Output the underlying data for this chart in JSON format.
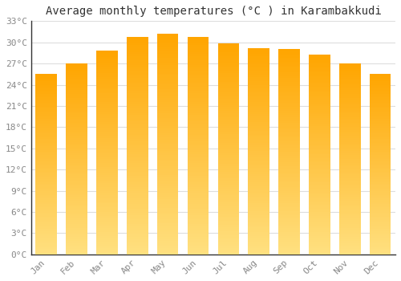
{
  "title": "Average monthly temperatures (°C ) in Karambakkudi",
  "months": [
    "Jan",
    "Feb",
    "Mar",
    "Apr",
    "May",
    "Jun",
    "Jul",
    "Aug",
    "Sep",
    "Oct",
    "Nov",
    "Dec"
  ],
  "values": [
    25.5,
    27.0,
    28.8,
    30.8,
    31.2,
    30.8,
    29.8,
    29.2,
    29.0,
    28.3,
    27.0,
    25.5
  ],
  "bar_color_top": "#FFA500",
  "bar_color_bottom": "#FFE080",
  "ylim": [
    0,
    33
  ],
  "yticks": [
    0,
    3,
    6,
    9,
    12,
    15,
    18,
    21,
    24,
    27,
    30,
    33
  ],
  "background_color": "#FFFFFF",
  "plot_bg_color": "#FFFFFF",
  "grid_color": "#DDDDDD",
  "title_fontsize": 10,
  "tick_fontsize": 8,
  "tick_color": "#888888",
  "font_family": "monospace",
  "bar_width": 0.7,
  "gradient_steps": 100
}
